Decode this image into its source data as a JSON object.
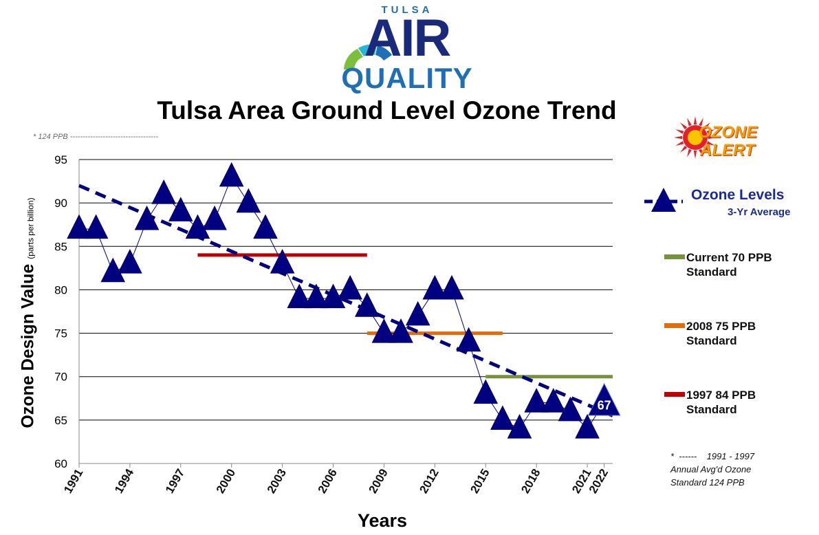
{
  "logo": {
    "small_text": "TULSA",
    "big_text": "AIR",
    "sub_text": "QUALITY",
    "colors": {
      "navy": "#1a2a7a",
      "blue": "#1f6fb6",
      "green": "#7bbf3a",
      "cyan": "#2bb6d8"
    }
  },
  "ozone_alert_badge": {
    "line1": "OZONE",
    "line2": "ALERT",
    "icon": "sun-burst-icon"
  },
  "footnote_top": "* 124 PPB  -----------------------------------",
  "footnote_right": {
    "line1": "*  ------    1991 - 1997",
    "line2": "Annual Avg'd Ozone",
    "line3": "Standard   124 PPB"
  },
  "legend": {
    "ozone_label": "Ozone Levels",
    "ozone_sub": "3-Yr Average",
    "standards": [
      {
        "line1": "Current 70 PPB",
        "line2": "Standard",
        "color": "#76923c"
      },
      {
        "line1": "2008 75 PPB",
        "line2": "Standard",
        "color": "#e36c0a"
      },
      {
        "line1": "1997 84 PPB",
        "line2": "Standard",
        "color": "#c00000"
      }
    ]
  },
  "chart_data": {
    "type": "line",
    "title": "Tulsa Area Ground Level Ozone Trend",
    "xlabel": "Years",
    "ylabel": "Ozone Design Value",
    "ylabel_unit": "(parts per billion)",
    "xlim": [
      1991,
      2022.5
    ],
    "ylim": [
      60,
      95
    ],
    "yticks": [
      60,
      65,
      70,
      75,
      80,
      85,
      90,
      95
    ],
    "xticks": [
      1991,
      1994,
      1997,
      2000,
      2003,
      2006,
      2009,
      2012,
      2015,
      2018,
      2021,
      2022
    ],
    "grid": "horizontal",
    "series": [
      {
        "name": "Ozone Levels",
        "marker": "triangle",
        "color": "#000080",
        "x": [
          1991,
          1992,
          1993,
          1994,
          1995,
          1996,
          1997,
          1998,
          1999,
          2000,
          2001,
          2002,
          2003,
          2004,
          2005,
          2006,
          2007,
          2008,
          2009,
          2010,
          2011,
          2012,
          2013,
          2014,
          2015,
          2016,
          2017,
          2018,
          2019,
          2020,
          2021,
          2022
        ],
        "y": [
          87,
          87,
          82,
          83,
          88,
          91,
          89,
          87,
          88,
          93,
          90,
          87,
          83,
          79,
          79,
          79,
          80,
          78,
          75,
          75,
          77,
          80,
          80,
          74,
          68,
          65,
          64,
          67,
          67,
          66,
          64,
          67
        ]
      }
    ],
    "highlight": {
      "x": 2022,
      "label": "67"
    },
    "trend_line": {
      "x": [
        1991,
        2022.5
      ],
      "y": [
        92,
        65.5
      ],
      "color": "#000080"
    },
    "standards": [
      {
        "label": "1997 84 PPB Standard",
        "value": 84,
        "x_start": 1998,
        "x_end": 2008,
        "color": "#c00000"
      },
      {
        "label": "2008 75 PPB Standard",
        "value": 75,
        "x_start": 2008,
        "x_end": 2016,
        "color": "#e36c0a"
      },
      {
        "label": "Current 70 PPB Standard",
        "value": 70,
        "x_start": 2015,
        "x_end": 2022.5,
        "color": "#76923c"
      }
    ]
  }
}
